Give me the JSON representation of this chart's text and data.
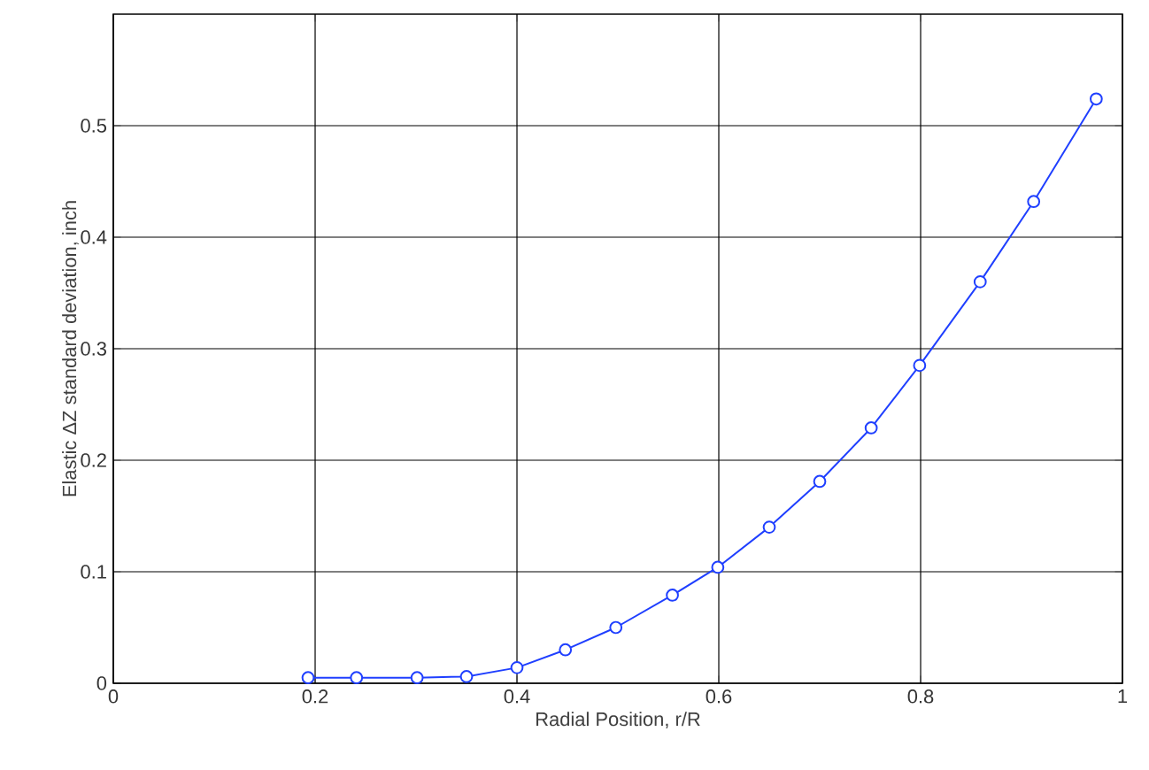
{
  "chart_data": {
    "type": "line",
    "xlabel": "Radial Position, r/R",
    "ylabel": "Elastic ΔZ standard deviation, inch",
    "xlim": [
      0,
      1
    ],
    "xticks": [
      0,
      0.2,
      0.4,
      0.6,
      0.8,
      1
    ],
    "ylim": [
      0,
      0.6
    ],
    "yticks": [
      0,
      0.1,
      0.2,
      0.3,
      0.4,
      0.5
    ],
    "grid": true,
    "marker": "circle",
    "line_style": "solid",
    "x": [
      0.193,
      0.241,
      0.301,
      0.35,
      0.4,
      0.448,
      0.498,
      0.554,
      0.599,
      0.65,
      0.7,
      0.751,
      0.799,
      0.859,
      0.912,
      0.974
    ],
    "series": [
      {
        "color": "#1f3fff",
        "values": [
          0.005,
          0.005,
          0.005,
          0.006,
          0.014,
          0.03,
          0.05,
          0.079,
          0.104,
          0.14,
          0.181,
          0.229,
          0.285,
          0.36,
          0.432,
          0.524
        ]
      }
    ]
  }
}
